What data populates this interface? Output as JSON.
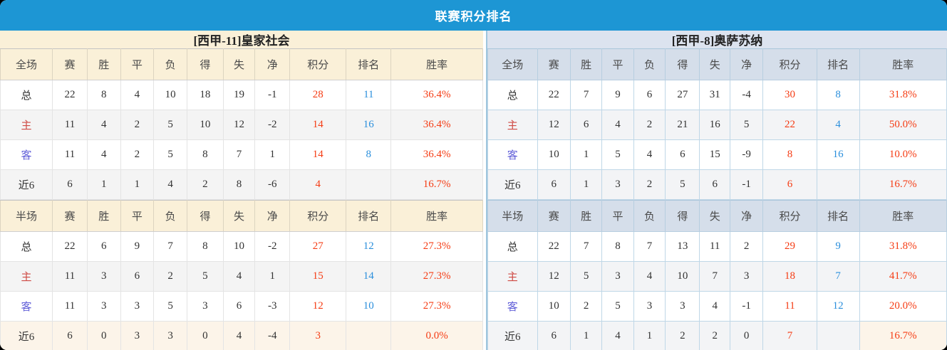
{
  "title": "联赛积分排名",
  "table": {
    "full_label": "全场",
    "half_label": "半场",
    "columns": [
      "赛",
      "胜",
      "平",
      "负",
      "得",
      "失",
      "净",
      "积分",
      "排名",
      "胜率"
    ]
  },
  "teams": [
    {
      "name": "[西甲-11]皇家社会",
      "full": [
        {
          "label": "总",
          "stats": [
            "22",
            "8",
            "4",
            "10",
            "18",
            "19",
            "-1"
          ],
          "points": "28",
          "rank": "11",
          "rate": "36.4%"
        },
        {
          "label": "主",
          "stats": [
            "11",
            "4",
            "2",
            "5",
            "10",
            "12",
            "-2"
          ],
          "points": "14",
          "rank": "16",
          "rate": "36.4%"
        },
        {
          "label": "客",
          "stats": [
            "11",
            "4",
            "2",
            "5",
            "8",
            "7",
            "1"
          ],
          "points": "14",
          "rank": "8",
          "rate": "36.4%"
        },
        {
          "label": "近6",
          "stats": [
            "6",
            "1",
            "1",
            "4",
            "2",
            "8",
            "-6"
          ],
          "points": "4",
          "rank": "",
          "rate": "16.7%"
        }
      ],
      "half": [
        {
          "label": "总",
          "stats": [
            "22",
            "6",
            "9",
            "7",
            "8",
            "10",
            "-2"
          ],
          "points": "27",
          "rank": "12",
          "rate": "27.3%"
        },
        {
          "label": "主",
          "stats": [
            "11",
            "3",
            "6",
            "2",
            "5",
            "4",
            "1"
          ],
          "points": "15",
          "rank": "14",
          "rate": "27.3%"
        },
        {
          "label": "客",
          "stats": [
            "11",
            "3",
            "3",
            "5",
            "3",
            "6",
            "-3"
          ],
          "points": "12",
          "rank": "10",
          "rate": "27.3%"
        },
        {
          "label": "近6",
          "stats": [
            "6",
            "0",
            "3",
            "3",
            "0",
            "4",
            "-4"
          ],
          "points": "3",
          "rank": "",
          "rate": "0.0%"
        }
      ]
    },
    {
      "name": "[西甲-8]奥萨苏纳",
      "full": [
        {
          "label": "总",
          "stats": [
            "22",
            "7",
            "9",
            "6",
            "27",
            "31",
            "-4"
          ],
          "points": "30",
          "rank": "8",
          "rate": "31.8%"
        },
        {
          "label": "主",
          "stats": [
            "12",
            "6",
            "4",
            "2",
            "21",
            "16",
            "5"
          ],
          "points": "22",
          "rank": "4",
          "rate": "50.0%"
        },
        {
          "label": "客",
          "stats": [
            "10",
            "1",
            "5",
            "4",
            "6",
            "15",
            "-9"
          ],
          "points": "8",
          "rank": "16",
          "rate": "10.0%"
        },
        {
          "label": "近6",
          "stats": [
            "6",
            "1",
            "3",
            "2",
            "5",
            "6",
            "-1"
          ],
          "points": "6",
          "rank": "",
          "rate": "16.7%"
        }
      ],
      "half": [
        {
          "label": "总",
          "stats": [
            "22",
            "7",
            "8",
            "7",
            "13",
            "11",
            "2"
          ],
          "points": "29",
          "rank": "9",
          "rate": "31.8%"
        },
        {
          "label": "主",
          "stats": [
            "12",
            "5",
            "3",
            "4",
            "10",
            "7",
            "3"
          ],
          "points": "18",
          "rank": "7",
          "rate": "41.7%"
        },
        {
          "label": "客",
          "stats": [
            "10",
            "2",
            "5",
            "3",
            "3",
            "4",
            "-1"
          ],
          "points": "11",
          "rank": "12",
          "rate": "20.0%"
        },
        {
          "label": "近6",
          "stats": [
            "6",
            "1",
            "4",
            "1",
            "2",
            "2",
            "0"
          ],
          "points": "7",
          "rank": "",
          "rate": "16.7%"
        }
      ]
    }
  ],
  "colors": {
    "header_bar_blue": "#1D96D4",
    "left_panel_cream": "#FAF0D8",
    "right_panel_blue": "#DCE3EF",
    "points_red": "#F53C14",
    "rank_blue": "#2B8FDC",
    "home_label_red": "#CF4A44",
    "away_label_blue": "#615FD8"
  }
}
